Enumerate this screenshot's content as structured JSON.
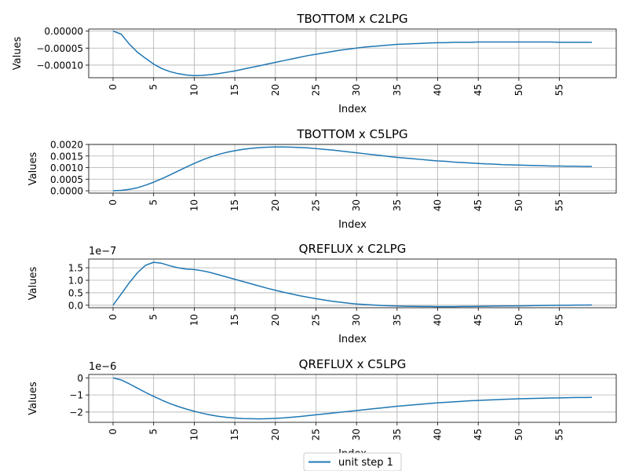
{
  "legend": {
    "label": "unit step 1",
    "color": "#1f77b4",
    "placement": "bottom-center"
  },
  "chart_data": [
    {
      "type": "line",
      "title": "TBOTTOM x C2LPG",
      "xlabel": "Index",
      "ylabel": "Values",
      "offset_text": "",
      "xlim": [
        -3,
        62
      ],
      "ylim": [
        -0.000137,
        6e-06
      ],
      "xticks": [
        0,
        5,
        10,
        15,
        20,
        25,
        30,
        35,
        40,
        45,
        50,
        55
      ],
      "yticks": [
        0.0,
        -5e-05,
        -0.0001
      ],
      "ytick_labels": [
        "0.00000",
        "−0.00005",
        "−0.00010"
      ],
      "grid": true,
      "series": [
        {
          "name": "unit step 1",
          "x": [
            0,
            1,
            2,
            3,
            4,
            5,
            6,
            7,
            8,
            9,
            10,
            11,
            12,
            13,
            14,
            15,
            16,
            17,
            18,
            19,
            20,
            21,
            22,
            23,
            24,
            25,
            26,
            27,
            28,
            29,
            30,
            31,
            32,
            33,
            34,
            35,
            36,
            37,
            38,
            39,
            40,
            41,
            42,
            43,
            44,
            45,
            46,
            47,
            48,
            49,
            50,
            51,
            52,
            53,
            54,
            55,
            56,
            57,
            58,
            59
          ],
          "y": [
            0.0,
            -9e-06,
            -3.8e-05,
            -6.2e-05,
            -8e-05,
            -9.7e-05,
            -0.00011,
            -0.000119,
            -0.000125,
            -0.000129,
            -0.000131,
            -0.00013,
            -0.000128,
            -0.000125,
            -0.000121,
            -0.000117,
            -0.000112,
            -0.000107,
            -0.000102,
            -9.7e-05,
            -9.2e-05,
            -8.7e-05,
            -8.2e-05,
            -7.7e-05,
            -7.2e-05,
            -6.8e-05,
            -6.4e-05,
            -6e-05,
            -5.6e-05,
            -5.3e-05,
            -5e-05,
            -4.7e-05,
            -4.5e-05,
            -4.3e-05,
            -4.1e-05,
            -3.9e-05,
            -3.8e-05,
            -3.7e-05,
            -3.6e-05,
            -3.5e-05,
            -3.4e-05,
            -3.4e-05,
            -3.3e-05,
            -3.3e-05,
            -3.3e-05,
            -3.2e-05,
            -3.2e-05,
            -3.2e-05,
            -3.2e-05,
            -3.2e-05,
            -3.2e-05,
            -3.2e-05,
            -3.2e-05,
            -3.2e-05,
            -3.2e-05,
            -3.3e-05,
            -3.3e-05,
            -3.3e-05,
            -3.3e-05,
            -3.3e-05
          ]
        }
      ]
    },
    {
      "type": "line",
      "title": "TBOTTOM x C5LPG",
      "xlabel": "Index",
      "ylabel": "Values",
      "offset_text": "",
      "xlim": [
        -3,
        62
      ],
      "ylim": [
        -0.0001,
        0.002
      ],
      "xticks": [
        0,
        5,
        10,
        15,
        20,
        25,
        30,
        35,
        40,
        45,
        50,
        55
      ],
      "yticks": [
        0.0,
        0.0005,
        0.001,
        0.0015,
        0.002
      ],
      "ytick_labels": [
        "0.0000",
        "0.0005",
        "0.0010",
        "0.0015",
        "0.0020"
      ],
      "grid": true,
      "series": [
        {
          "name": "unit step 1",
          "x": [
            0,
            1,
            2,
            3,
            4,
            5,
            6,
            7,
            8,
            9,
            10,
            11,
            12,
            13,
            14,
            15,
            16,
            17,
            18,
            19,
            20,
            21,
            22,
            23,
            24,
            25,
            26,
            27,
            28,
            29,
            30,
            31,
            32,
            33,
            34,
            35,
            36,
            37,
            38,
            39,
            40,
            41,
            42,
            43,
            44,
            45,
            46,
            47,
            48,
            49,
            50,
            51,
            52,
            53,
            54,
            55,
            56,
            57,
            58,
            59
          ],
          "y": [
            0.0,
            2e-05,
            6e-05,
            0.00013,
            0.00024,
            0.00037,
            0.00052,
            0.00068,
            0.00085,
            0.00102,
            0.00118,
            0.00133,
            0.00146,
            0.00157,
            0.00166,
            0.00173,
            0.00179,
            0.00183,
            0.00186,
            0.00188,
            0.00189,
            0.00189,
            0.00188,
            0.00187,
            0.00185,
            0.00182,
            0.00179,
            0.00176,
            0.00172,
            0.00168,
            0.00164,
            0.0016,
            0.00156,
            0.00152,
            0.00148,
            0.00144,
            0.00141,
            0.00138,
            0.00135,
            0.00132,
            0.00129,
            0.00127,
            0.00124,
            0.00122,
            0.0012,
            0.00118,
            0.00116,
            0.00115,
            0.00113,
            0.00112,
            0.00111,
            0.0011,
            0.00109,
            0.00108,
            0.00107,
            0.00107,
            0.00106,
            0.00106,
            0.00105,
            0.00105
          ]
        }
      ]
    },
    {
      "type": "line",
      "title": "QREFLUX x C2LPG",
      "xlabel": "Index",
      "ylabel": "Values",
      "offset_text": "1e−7",
      "xlim": [
        -3,
        62
      ],
      "ylim": [
        -0.1,
        1.85
      ],
      "xticks": [
        0,
        5,
        10,
        15,
        20,
        25,
        30,
        35,
        40,
        45,
        50,
        55
      ],
      "yticks": [
        0.0,
        0.5,
        1.0,
        1.5
      ],
      "ytick_labels": [
        "0.0",
        "0.5",
        "1.0",
        "1.5"
      ],
      "grid": true,
      "series": [
        {
          "name": "unit step 1",
          "x": [
            0,
            1,
            2,
            3,
            4,
            5,
            6,
            7,
            8,
            9,
            10,
            11,
            12,
            13,
            14,
            15,
            16,
            17,
            18,
            19,
            20,
            21,
            22,
            23,
            24,
            25,
            26,
            27,
            28,
            29,
            30,
            31,
            32,
            33,
            34,
            35,
            36,
            37,
            38,
            39,
            40,
            41,
            42,
            43,
            44,
            45,
            46,
            47,
            48,
            49,
            50,
            51,
            52,
            53,
            54,
            55,
            56,
            57,
            58,
            59
          ],
          "y": [
            0.0,
            0.45,
            0.9,
            1.3,
            1.6,
            1.72,
            1.68,
            1.58,
            1.5,
            1.45,
            1.43,
            1.38,
            1.31,
            1.22,
            1.13,
            1.04,
            0.95,
            0.86,
            0.77,
            0.68,
            0.6,
            0.52,
            0.45,
            0.38,
            0.32,
            0.26,
            0.21,
            0.16,
            0.12,
            0.08,
            0.05,
            0.03,
            0.01,
            -0.01,
            -0.02,
            -0.03,
            -0.04,
            -0.045,
            -0.05,
            -0.05,
            -0.055,
            -0.055,
            -0.055,
            -0.05,
            -0.05,
            -0.045,
            -0.04,
            -0.035,
            -0.03,
            -0.03,
            -0.025,
            -0.02,
            -0.015,
            -0.01,
            -0.005,
            0.0,
            0.0,
            0.005,
            0.005,
            0.01
          ]
        }
      ]
    },
    {
      "type": "line",
      "title": "QREFLUX x C5LPG",
      "xlabel": "Index",
      "ylabel": "Values",
      "offset_text": "1e−6",
      "xlim": [
        -3,
        62
      ],
      "ylim": [
        -2.6,
        0.2
      ],
      "xticks": [
        0,
        5,
        10,
        15,
        20,
        25,
        30,
        35,
        40,
        45,
        50,
        55
      ],
      "yticks": [
        0,
        -1,
        -2
      ],
      "ytick_labels": [
        "0",
        "−1",
        "−2"
      ],
      "grid": true,
      "series": [
        {
          "name": "unit step 1",
          "x": [
            0,
            1,
            2,
            3,
            4,
            5,
            6,
            7,
            8,
            9,
            10,
            11,
            12,
            13,
            14,
            15,
            16,
            17,
            18,
            19,
            20,
            21,
            22,
            23,
            24,
            25,
            26,
            27,
            28,
            29,
            30,
            31,
            32,
            33,
            34,
            35,
            36,
            37,
            38,
            39,
            40,
            41,
            42,
            43,
            44,
            45,
            46,
            47,
            48,
            49,
            50,
            51,
            52,
            53,
            54,
            55,
            56,
            57,
            58,
            59
          ],
          "y": [
            0.0,
            -0.12,
            -0.35,
            -0.6,
            -0.85,
            -1.08,
            -1.3,
            -1.5,
            -1.67,
            -1.82,
            -1.95,
            -2.07,
            -2.17,
            -2.25,
            -2.31,
            -2.35,
            -2.38,
            -2.39,
            -2.4,
            -2.39,
            -2.37,
            -2.34,
            -2.3,
            -2.26,
            -2.21,
            -2.16,
            -2.11,
            -2.06,
            -2.01,
            -1.96,
            -1.91,
            -1.86,
            -1.81,
            -1.76,
            -1.71,
            -1.66,
            -1.62,
            -1.58,
            -1.54,
            -1.5,
            -1.46,
            -1.43,
            -1.4,
            -1.37,
            -1.34,
            -1.32,
            -1.3,
            -1.28,
            -1.26,
            -1.24,
            -1.22,
            -1.21,
            -1.2,
            -1.19,
            -1.18,
            -1.17,
            -1.16,
            -1.15,
            -1.15,
            -1.14
          ]
        }
      ]
    }
  ]
}
